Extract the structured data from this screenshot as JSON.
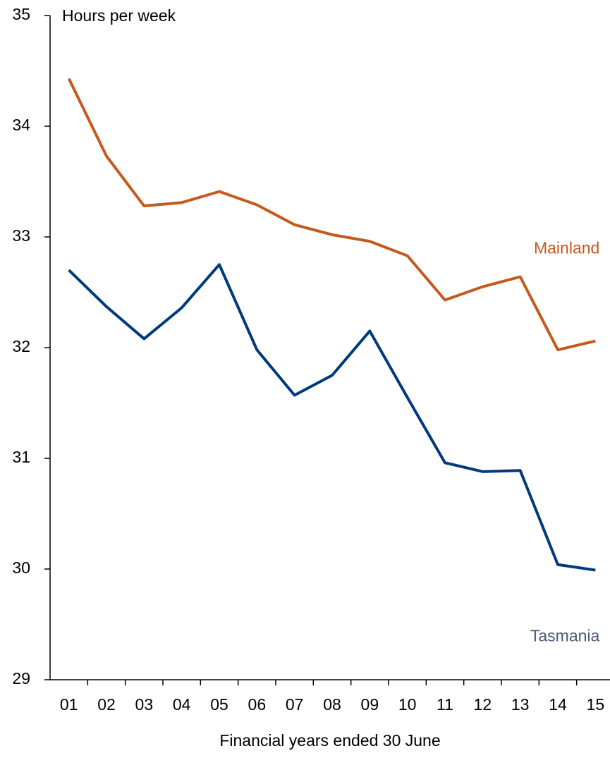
{
  "chart_data": {
    "type": "line",
    "y_label": "Hours per week",
    "x_label": "Financial years ended 30 June",
    "categories": [
      "01",
      "02",
      "03",
      "04",
      "05",
      "06",
      "07",
      "08",
      "09",
      "10",
      "11",
      "12",
      "13",
      "14",
      "15"
    ],
    "series": [
      {
        "name": "Mainland",
        "color": "#c55a1e",
        "values": [
          34.43,
          33.73,
          33.28,
          33.31,
          33.41,
          33.29,
          33.11,
          33.02,
          32.96,
          32.83,
          32.43,
          32.55,
          32.64,
          31.98,
          32.06
        ]
      },
      {
        "name": "Tasmania",
        "color": "#003a7d",
        "values": [
          32.7,
          32.37,
          32.08,
          32.36,
          32.75,
          31.98,
          31.57,
          31.75,
          32.15,
          31.55,
          30.96,
          30.88,
          30.89,
          30.04,
          29.99
        ]
      }
    ],
    "ylim": [
      29,
      35
    ],
    "yticks": [
      29,
      30,
      31,
      32,
      33,
      34,
      35
    ],
    "grid": false
  }
}
